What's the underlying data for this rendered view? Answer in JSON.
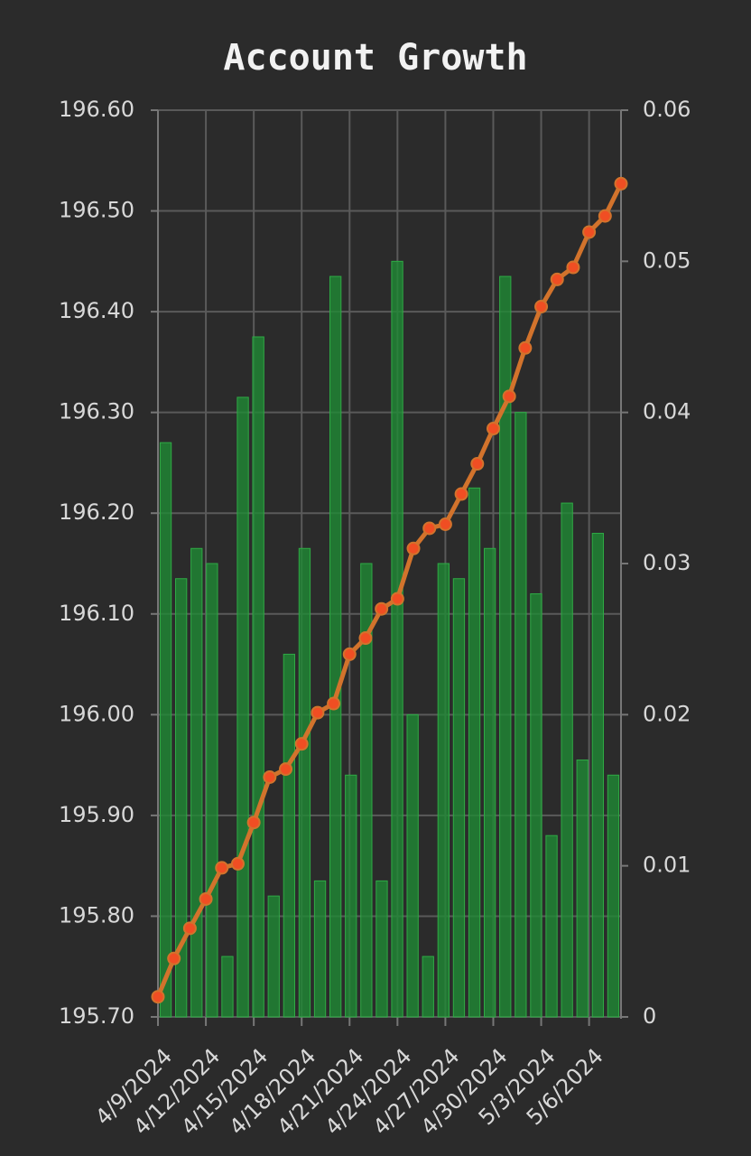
{
  "chart_data": {
    "type": "combo",
    "title": "Account Growth",
    "categories": [
      "4/9/2024",
      null,
      null,
      "4/12/2024",
      null,
      null,
      "4/15/2024",
      null,
      null,
      "4/18/2024",
      null,
      null,
      "4/21/2024",
      null,
      null,
      "4/24/2024",
      null,
      null,
      "4/27/2024",
      null,
      null,
      "4/30/2024",
      null,
      null,
      "5/3/2024",
      null,
      null,
      "5/6/2024",
      null,
      null
    ],
    "series": [
      {
        "type": "bar",
        "axis": "y2",
        "color": "#1f8a34",
        "values": [
          0.038,
          0.029,
          0.031,
          0.03,
          0.004,
          0.041,
          0.045,
          0.008,
          0.024,
          0.031,
          0.009,
          0.049,
          0.016,
          0.03,
          0.009,
          0.05,
          0.02,
          0.004,
          0.03,
          0.029,
          0.035,
          0.031,
          0.049,
          0.04,
          0.028,
          0.012,
          0.034,
          0.017,
          0.032,
          0.016
        ]
      },
      {
        "type": "line",
        "axis": "y",
        "color": "#d2732c",
        "marker_color": "#f04e23",
        "values": [
          195.72,
          195.758,
          195.788,
          195.817,
          195.848,
          195.852,
          195.893,
          195.938,
          195.946,
          195.971,
          196.002,
          196.011,
          196.06,
          196.076,
          196.105,
          196.115,
          196.165,
          196.185,
          196.189,
          196.219,
          196.249,
          196.284,
          196.316,
          196.364,
          196.405,
          196.432,
          196.444,
          196.479,
          196.495,
          196.527
        ]
      }
    ],
    "ylim": [
      195.7,
      196.6
    ],
    "yticks": [
      {
        "value": 195.7,
        "label": "195.70"
      },
      {
        "value": 195.8,
        "label": "195.80"
      },
      {
        "value": 195.9,
        "label": "195.90"
      },
      {
        "value": 196.0,
        "label": "196.00"
      },
      {
        "value": 196.1,
        "label": "196.10"
      },
      {
        "value": 196.2,
        "label": "196.20"
      },
      {
        "value": 196.3,
        "label": "196.30"
      },
      {
        "value": 196.4,
        "label": "196.40"
      },
      {
        "value": 196.5,
        "label": "196.50"
      },
      {
        "value": 196.6,
        "label": "196.60"
      }
    ],
    "y2lim": [
      0,
      0.06
    ],
    "y2ticks": [
      0,
      0.01,
      0.02,
      0.03,
      0.04,
      0.05,
      0.06
    ],
    "grid": true
  }
}
